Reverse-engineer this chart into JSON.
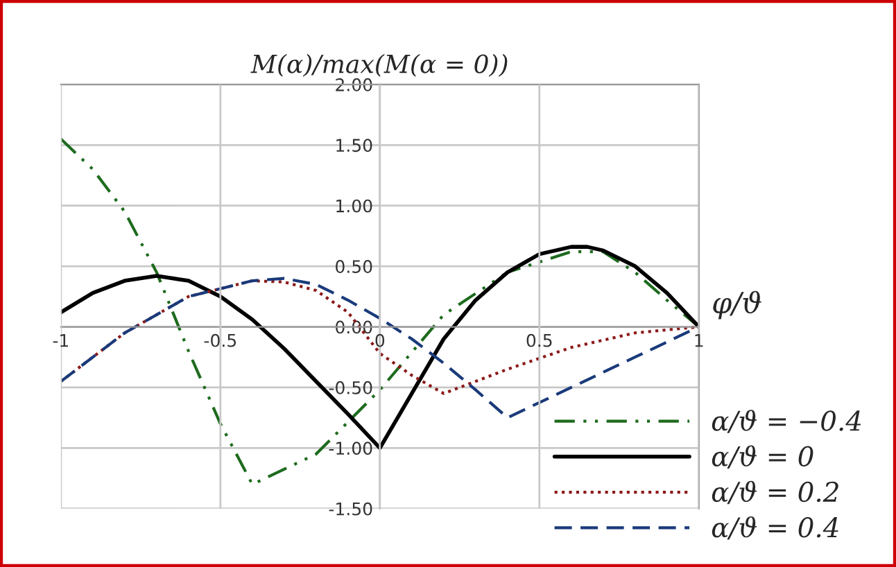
{
  "chart_data": {
    "type": "line",
    "title": "M(α)/max(M(α = 0))",
    "xlabel": "φ/ϑ",
    "xlim": [
      -1,
      1
    ],
    "ylim": [
      -1.5,
      2.0
    ],
    "xticks": [
      {
        "value": -1,
        "label": "-1"
      },
      {
        "value": -0.5,
        "label": "-0.5"
      },
      {
        "value": 0,
        "label": "0"
      },
      {
        "value": 0.5,
        "label": "0.5"
      },
      {
        "value": 1,
        "label": "1"
      }
    ],
    "yticks": [
      {
        "value": -1.5,
        "label": "-1.50"
      },
      {
        "value": -1,
        "label": "-1.00"
      },
      {
        "value": -0.5,
        "label": "-0.50"
      },
      {
        "value": 0,
        "label": "0.00"
      },
      {
        "value": 0.5,
        "label": "0.50"
      },
      {
        "value": 1,
        "label": "1.00"
      },
      {
        "value": 1.5,
        "label": "1.50"
      },
      {
        "value": 2,
        "label": "2.00"
      }
    ],
    "grid": true,
    "legend": "bottom right",
    "marker": "none",
    "series": [
      {
        "name": "α/ϑ = −0.4",
        "color": "#1e6b1e",
        "line_style": "dashdot",
        "x": [
          -1,
          -0.9,
          -0.8,
          -0.7,
          -0.6,
          -0.5,
          -0.4,
          -0.2,
          0,
          0.2,
          0.4,
          0.6,
          0.7,
          0.8,
          0.9,
          1
        ],
        "values": [
          1.55,
          1.3,
          0.95,
          0.45,
          -0.2,
          -0.8,
          -1.3,
          -1.05,
          -0.52,
          0.1,
          0.45,
          0.62,
          0.62,
          0.45,
          0.22,
          0
        ]
      },
      {
        "name": "α/ϑ = 0",
        "color": "#000000",
        "line_style": "solid",
        "x": [
          -1,
          -0.9,
          -0.8,
          -0.7,
          -0.6,
          -0.5,
          -0.4,
          -0.3,
          -0.2,
          -0.1,
          0,
          0.1,
          0.2,
          0.3,
          0.4,
          0.5,
          0.6,
          0.65,
          0.7,
          0.8,
          0.9,
          1
        ],
        "values": [
          0.12,
          0.28,
          0.38,
          0.42,
          0.38,
          0.25,
          0.06,
          -0.18,
          -0.45,
          -0.72,
          -1.0,
          -0.55,
          -0.1,
          0.22,
          0.45,
          0.6,
          0.66,
          0.66,
          0.63,
          0.5,
          0.28,
          0
        ]
      },
      {
        "name": "α/ϑ = 0.2",
        "color": "#8b1a1a",
        "line_style": "dotted",
        "x": [
          -1,
          -0.8,
          -0.6,
          -0.4,
          -0.3,
          -0.2,
          -0.1,
          0,
          0.1,
          0.2,
          0.4,
          0.6,
          0.8,
          1
        ],
        "values": [
          -0.45,
          -0.05,
          0.25,
          0.38,
          0.37,
          0.3,
          0.12,
          -0.22,
          -0.4,
          -0.55,
          -0.35,
          -0.17,
          -0.05,
          0
        ]
      },
      {
        "name": "α/ϑ = 0.4",
        "color": "#1a3a7a",
        "line_style": "dashed",
        "x": [
          -1,
          -0.8,
          -0.6,
          -0.4,
          -0.3,
          -0.2,
          -0.1,
          0,
          0.1,
          0.2,
          0.3,
          0.4,
          0.6,
          0.8,
          1
        ],
        "values": [
          -0.45,
          -0.05,
          0.25,
          0.38,
          0.4,
          0.35,
          0.22,
          0.07,
          -0.1,
          -0.3,
          -0.52,
          -0.75,
          -0.5,
          -0.25,
          0
        ]
      }
    ]
  }
}
